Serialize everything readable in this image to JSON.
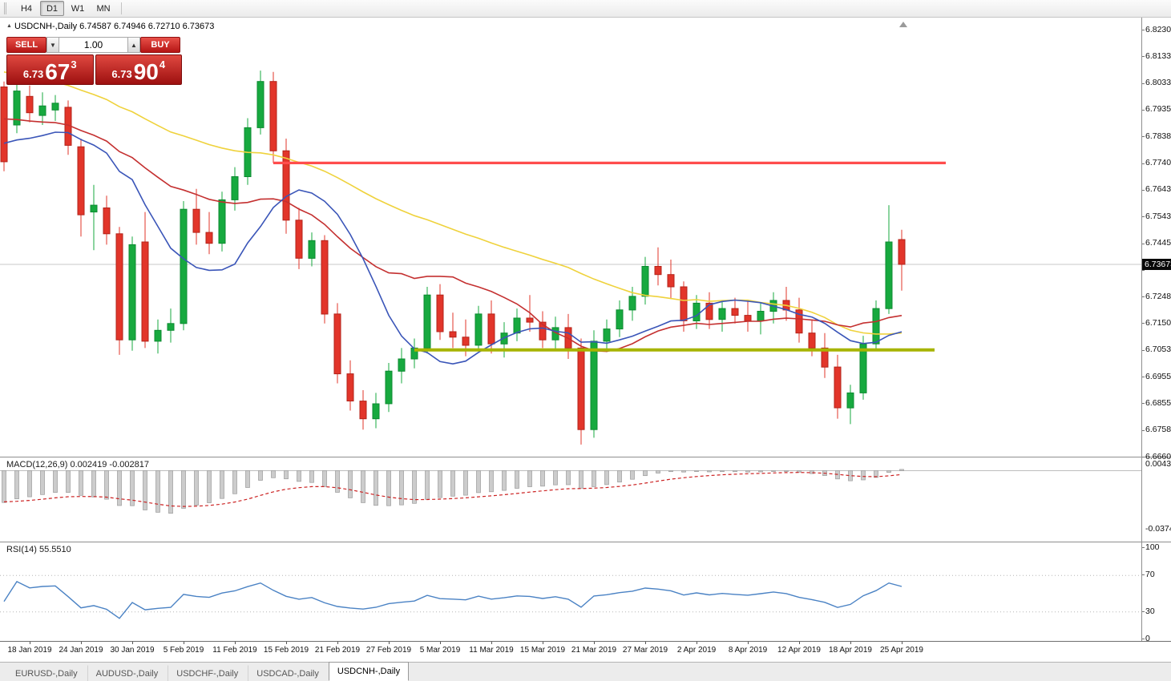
{
  "toolbar": {
    "timeframes": [
      {
        "label": "H4",
        "active": false
      },
      {
        "label": "D1",
        "active": true
      },
      {
        "label": "W1",
        "active": false
      },
      {
        "label": "MN",
        "active": false
      }
    ]
  },
  "chart": {
    "title": "USDCNH-,Daily",
    "ohlc": "6.74587 6.74946 6.72710 6.73673",
    "trade_widget": {
      "sell_label": "SELL",
      "buy_label": "BUY",
      "volume": "1.00",
      "sell_price": {
        "base": "6.73",
        "big": "67",
        "sup": "3"
      },
      "buy_price": {
        "base": "6.73",
        "big": "90",
        "sup": "4"
      }
    },
    "price_axis": {
      "labels": [
        "6.82305",
        "6.81330",
        "6.80335",
        "6.79355",
        "6.78380",
        "6.77405",
        "6.76430",
        "6.75430",
        "6.74455",
        "",
        "6.72480",
        "6.71505",
        "6.70530",
        "6.69555",
        "6.68555",
        "6.67580",
        "6.66605"
      ],
      "current": "6.73673"
    }
  },
  "macd": {
    "label": "MACD(12,26,9) 0.002419 -0.002817",
    "axis_top": "0.004319",
    "axis_bottom": "-0.03746",
    "fast": 12,
    "slow": 26,
    "signal": 9
  },
  "rsi": {
    "label": "RSI(14) 55.5510",
    "period": 14,
    "axis_labels": [
      "100",
      "70",
      "30",
      "0"
    ]
  },
  "time_axis": [
    {
      "text": "18 Jan 2019",
      "i": 2
    },
    {
      "text": "24 Jan 2019",
      "i": 6
    },
    {
      "text": "30 Jan 2019",
      "i": 10
    },
    {
      "text": "5 Feb 2019",
      "i": 14
    },
    {
      "text": "11 Feb 2019",
      "i": 18
    },
    {
      "text": "15 Feb 2019",
      "i": 22
    },
    {
      "text": "21 Feb 2019",
      "i": 26
    },
    {
      "text": "27 Feb 2019",
      "i": 30
    },
    {
      "text": "5 Mar 2019",
      "i": 34
    },
    {
      "text": "11 Mar 2019",
      "i": 38
    },
    {
      "text": "15 Mar 2019",
      "i": 42
    },
    {
      "text": "21 Mar 2019",
      "i": 46
    },
    {
      "text": "27 Mar 2019",
      "i": 50
    },
    {
      "text": "2 Apr 2019",
      "i": 54
    },
    {
      "text": "8 Apr 2019",
      "i": 58
    },
    {
      "text": "12 Apr 2019",
      "i": 62
    },
    {
      "text": "18 Apr 2019",
      "i": 66
    },
    {
      "text": "25 Apr 2019",
      "i": 70
    }
  ],
  "tabs": [
    {
      "label": "EURUSD-,Daily",
      "active": false
    },
    {
      "label": "AUDUSD-,Daily",
      "active": false
    },
    {
      "label": "USDCHF-,Daily",
      "active": false
    },
    {
      "label": "USDCAD-,Daily",
      "active": false
    },
    {
      "label": "USDCNH-,Daily",
      "active": true
    }
  ],
  "chart_data": {
    "type": "candlestick",
    "symbol": "USDCNH-",
    "timeframe": "Daily",
    "ylim": [
      6.66605,
      6.82305
    ],
    "candle_fields": [
      "date",
      "open",
      "high",
      "low",
      "close"
    ],
    "candles": [
      [
        "16 Jan",
        6.802,
        6.804,
        6.771,
        6.7745
      ],
      [
        "17 Jan",
        6.788,
        6.803,
        6.785,
        6.8005
      ],
      [
        "18 Jan",
        6.7985,
        6.8025,
        6.789,
        6.7925
      ],
      [
        "21 Jan",
        6.7915,
        6.8,
        6.788,
        6.795
      ],
      [
        "22 Jan",
        6.7935,
        6.799,
        6.7895,
        6.796
      ],
      [
        "23 Jan",
        6.7945,
        6.797,
        6.777,
        6.7805
      ],
      [
        "24 Jan",
        6.78,
        6.783,
        6.747,
        6.755
      ],
      [
        "25 Jan",
        6.756,
        6.766,
        6.742,
        6.7585
      ],
      [
        "28 Jan",
        6.7575,
        6.762,
        6.744,
        6.748
      ],
      [
        "29 Jan",
        6.748,
        6.7505,
        6.7035,
        6.709
      ],
      [
        "30 Jan",
        6.709,
        6.747,
        6.705,
        6.744
      ],
      [
        "31 Jan",
        6.745,
        6.756,
        6.706,
        6.7085
      ],
      [
        "1 Feb",
        6.7085,
        6.7165,
        6.704,
        6.7125
      ],
      [
        "4 Feb",
        6.7125,
        6.7205,
        6.708,
        6.715
      ],
      [
        "5 Feb",
        6.715,
        6.76,
        6.7125,
        6.757
      ],
      [
        "6 Feb",
        6.757,
        6.7645,
        6.744,
        6.7485
      ],
      [
        "7 Feb",
        6.7485,
        6.756,
        6.7405,
        6.7445
      ],
      [
        "8 Feb",
        6.7445,
        6.7635,
        6.7415,
        6.7605
      ],
      [
        "11 Feb",
        6.7605,
        6.7725,
        6.7565,
        6.769
      ],
      [
        "12 Feb",
        6.769,
        6.7905,
        6.766,
        6.787
      ],
      [
        "13 Feb",
        6.787,
        6.808,
        6.7845,
        6.804
      ],
      [
        "14 Feb",
        6.804,
        6.8075,
        6.774,
        6.7785
      ],
      [
        "15 Feb",
        6.7785,
        6.783,
        6.748,
        6.753
      ],
      [
        "18 Feb",
        6.753,
        6.7575,
        6.735,
        6.739
      ],
      [
        "19 Feb",
        6.739,
        6.7485,
        6.736,
        6.7455
      ],
      [
        "20 Feb",
        6.7455,
        6.7475,
        6.715,
        6.7185
      ],
      [
        "21 Feb",
        6.7185,
        6.7225,
        6.693,
        6.6965
      ],
      [
        "22 Feb",
        6.6965,
        6.7015,
        6.683,
        6.6865
      ],
      [
        "25 Feb",
        6.6865,
        6.6905,
        6.676,
        6.68
      ],
      [
        "26 Feb",
        6.68,
        6.6895,
        6.6765,
        6.6855
      ],
      [
        "27 Feb",
        6.6855,
        6.7005,
        6.6825,
        6.6975
      ],
      [
        "28 Feb",
        6.6975,
        6.706,
        6.693,
        6.702
      ],
      [
        "1 Mar",
        6.702,
        6.7095,
        6.6985,
        6.706
      ],
      [
        "4 Mar",
        6.706,
        6.7285,
        6.704,
        6.7255
      ],
      [
        "5 Mar",
        6.7255,
        6.7295,
        6.709,
        6.712
      ],
      [
        "6 Mar",
        6.712,
        6.719,
        6.706,
        6.71
      ],
      [
        "7 Mar",
        6.71,
        6.7165,
        6.703,
        6.707
      ],
      [
        "8 Mar",
        6.707,
        6.7215,
        6.705,
        6.7185
      ],
      [
        "11 Mar",
        6.7185,
        6.7235,
        6.704,
        6.7075
      ],
      [
        "12 Mar",
        6.7075,
        6.7155,
        6.7025,
        6.7115
      ],
      [
        "13 Mar",
        6.7115,
        6.7205,
        6.7085,
        6.717
      ],
      [
        "14 Mar",
        6.717,
        6.7255,
        6.712,
        6.7155
      ],
      [
        "15 Mar",
        6.7155,
        6.7195,
        6.706,
        6.709
      ],
      [
        "18 Mar",
        6.709,
        6.7175,
        6.7055,
        6.7135
      ],
      [
        "19 Mar",
        6.7135,
        6.7185,
        6.702,
        6.706
      ],
      [
        "20 Mar",
        6.706,
        6.7095,
        6.6705,
        6.676
      ],
      [
        "21 Mar",
        6.676,
        6.7125,
        6.673,
        6.7085
      ],
      [
        "22 Mar",
        6.7085,
        6.7165,
        6.7045,
        6.713
      ],
      [
        "25 Mar",
        6.713,
        6.7235,
        6.71,
        6.72
      ],
      [
        "26 Mar",
        6.72,
        6.7285,
        6.716,
        6.725
      ],
      [
        "27 Mar",
        6.725,
        6.7395,
        6.722,
        6.736
      ],
      [
        "28 Mar",
        6.736,
        6.743,
        6.729,
        6.733
      ],
      [
        "29 Mar",
        6.733,
        6.7385,
        6.724,
        6.7285
      ],
      [
        "1 Apr",
        6.7285,
        6.7305,
        6.712,
        6.716
      ],
      [
        "2 Apr",
        6.716,
        6.7255,
        6.713,
        6.7225
      ],
      [
        "3 Apr",
        6.7225,
        6.7265,
        6.713,
        6.7165
      ],
      [
        "4 Apr",
        6.7165,
        6.7235,
        6.712,
        6.7205
      ],
      [
        "5 Apr",
        6.7205,
        6.7245,
        6.715,
        6.718
      ],
      [
        "8 Apr",
        6.718,
        6.7235,
        6.712,
        6.716
      ],
      [
        "9 Apr",
        6.716,
        6.7225,
        6.711,
        6.7195
      ],
      [
        "10 Apr",
        6.7195,
        6.7265,
        6.715,
        6.7235
      ],
      [
        "11 Apr",
        6.7235,
        6.7285,
        6.716,
        6.72
      ],
      [
        "12 Apr",
        6.72,
        6.7245,
        6.708,
        6.7115
      ],
      [
        "15 Apr",
        6.7115,
        6.7165,
        6.703,
        6.706
      ],
      [
        "16 Apr",
        6.706,
        6.7115,
        6.695,
        6.699
      ],
      [
        "17 Apr",
        6.699,
        6.7035,
        6.68,
        6.684
      ],
      [
        "18 Apr",
        6.684,
        6.6925,
        6.678,
        6.6895
      ],
      [
        "22 Apr",
        6.6895,
        6.7105,
        6.687,
        6.7075
      ],
      [
        "23 Apr",
        6.7075,
        6.7235,
        6.7055,
        6.7205
      ],
      [
        "24 Apr",
        6.7205,
        6.7585,
        6.7185,
        6.745
      ],
      [
        "25 Apr",
        6.74587,
        6.74946,
        6.7271,
        6.73673
      ]
    ],
    "overlays": {
      "moving_averages": [
        {
          "period": 45,
          "color": "#EFD23C"
        },
        {
          "period": 22,
          "color": "#C43030"
        },
        {
          "period": 10,
          "color": "#3A55B8"
        }
      ],
      "hlines": [
        {
          "name": "resistance",
          "price": 6.77405,
          "color": "#FF4D4D"
        },
        {
          "name": "support",
          "price": 6.7053,
          "color": "#A7B400"
        }
      ]
    },
    "colors": {
      "up": "#17A93F",
      "up_border": "#0C8A30",
      "down": "#E2352A",
      "down_border": "#B3231A"
    }
  }
}
